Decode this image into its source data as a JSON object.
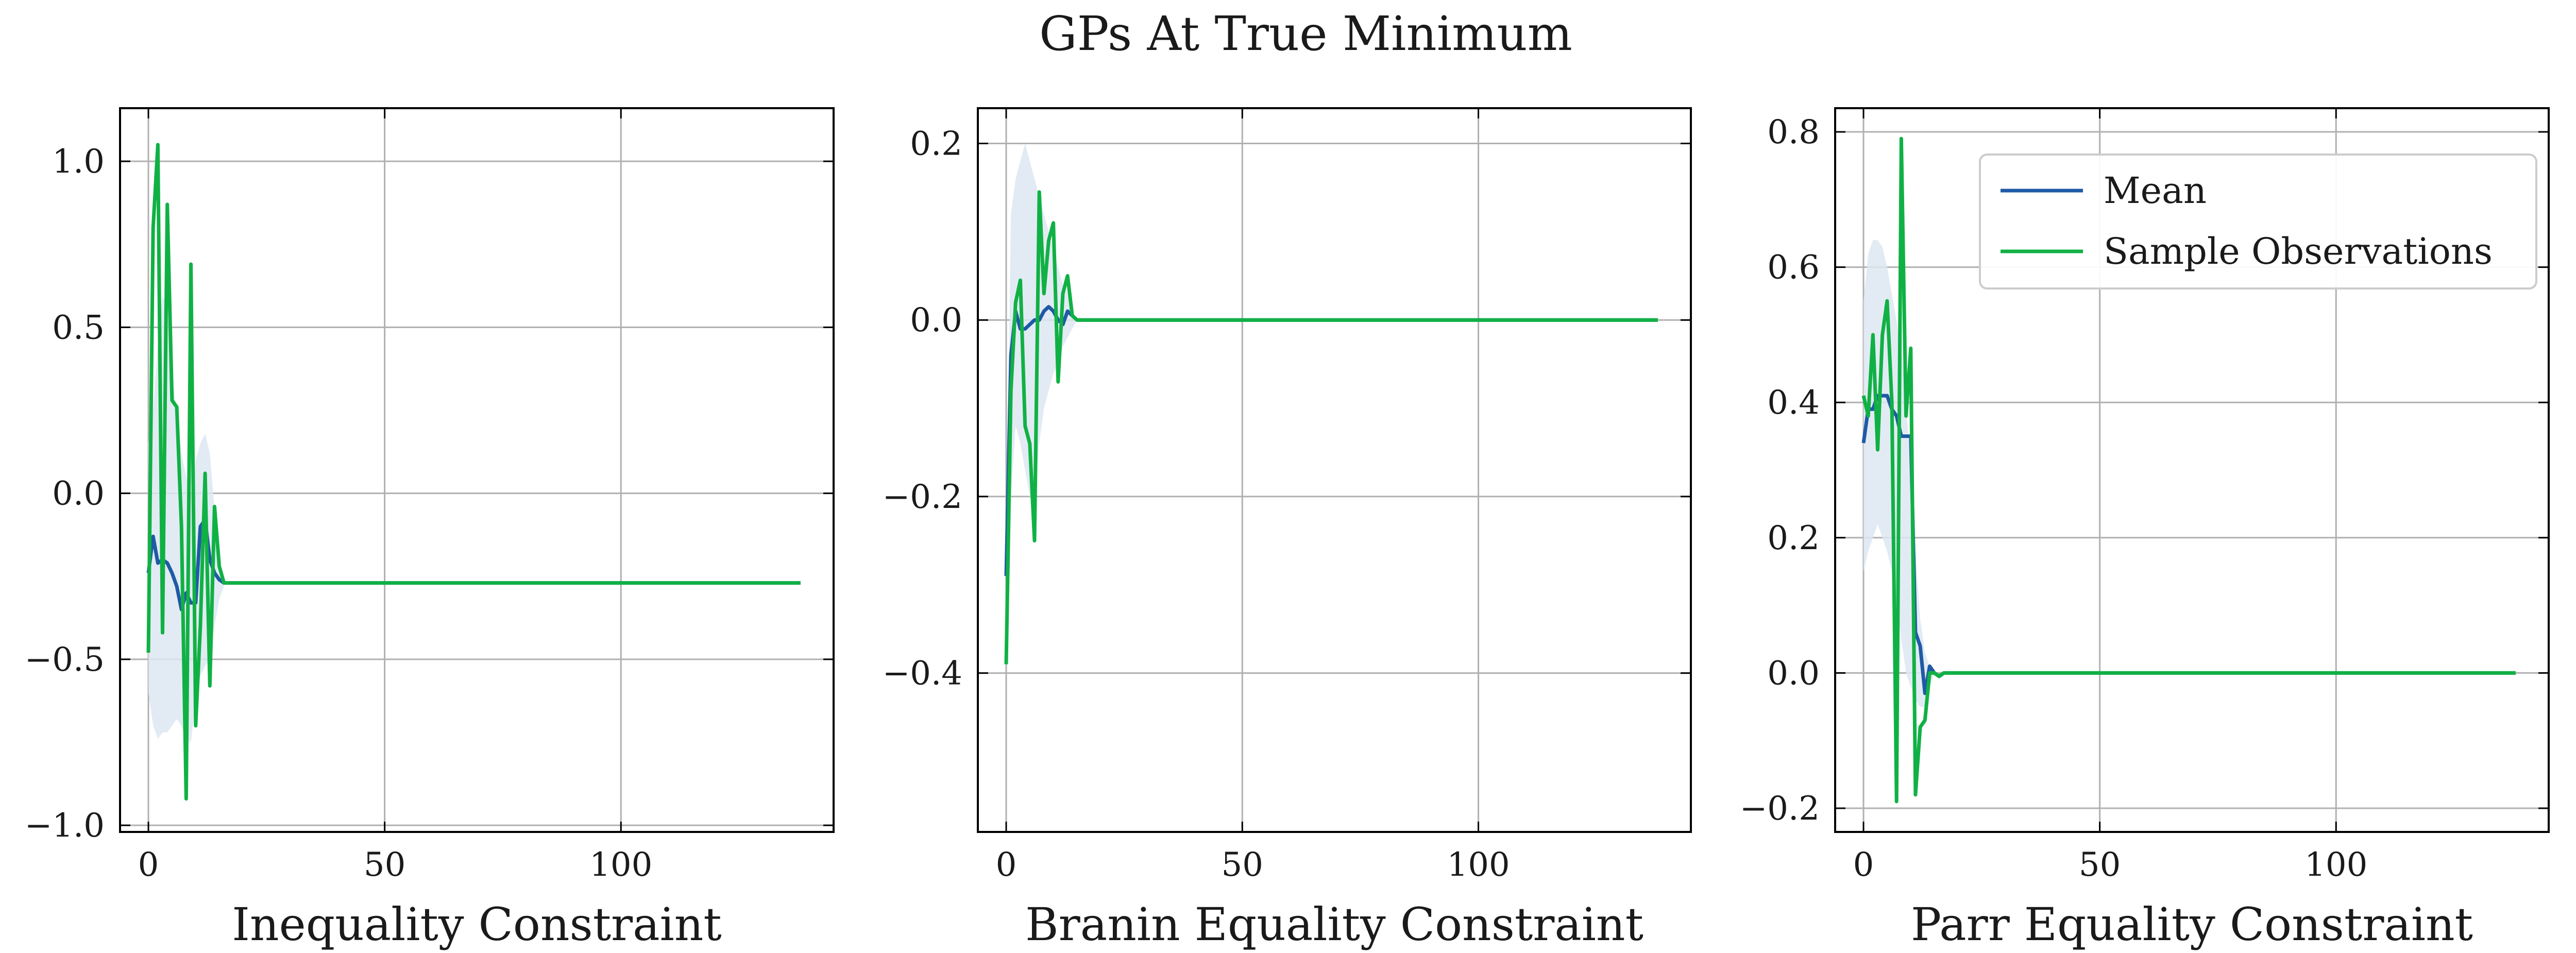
{
  "title": "GPs At True Minimum",
  "colors": {
    "mean": "#1f5aa6",
    "samples": "#10b144",
    "band": "#dde8f1",
    "grid": "#b0b0b0",
    "axis": "#000000"
  },
  "legend": {
    "location": "upper right",
    "subplot": 2,
    "entries": [
      "Mean",
      "Sample Observations"
    ]
  },
  "chart_data": [
    {
      "type": "line",
      "xlabel": "Inequality Constraint",
      "xlim": [
        -6,
        145
      ],
      "ylim": [
        -1.02,
        1.16
      ],
      "xticks": [
        0,
        50,
        100
      ],
      "xtick_labels": [
        "0",
        "50",
        "100"
      ],
      "yticks": [
        -1.0,
        -0.5,
        0.0,
        0.5,
        1.0
      ],
      "ytick_labels": [
        "−1.0",
        "−0.5",
        "0.0",
        "0.5",
        "1.0"
      ],
      "grid": true,
      "series": [
        {
          "name": "Mean",
          "x": [
            0,
            1,
            2,
            3,
            4,
            5,
            6,
            7,
            8,
            9,
            10,
            11,
            12,
            13,
            14,
            15,
            16,
            17,
            138
          ],
          "y": [
            -0.24,
            -0.13,
            -0.21,
            -0.2,
            -0.21,
            -0.24,
            -0.28,
            -0.35,
            -0.3,
            -0.33,
            -0.33,
            -0.1,
            -0.08,
            -0.2,
            -0.24,
            -0.26,
            -0.27,
            -0.27,
            -0.27
          ]
        },
        {
          "name": "Sample Observations",
          "x": [
            0,
            1,
            2,
            3,
            4,
            5,
            6,
            7,
            8,
            9,
            10,
            11,
            12,
            13,
            14,
            15,
            16,
            17,
            138
          ],
          "y": [
            -0.48,
            0.8,
            1.05,
            -0.42,
            0.87,
            0.28,
            0.26,
            -0.1,
            -0.92,
            0.69,
            -0.7,
            -0.4,
            0.06,
            -0.58,
            -0.04,
            -0.22,
            -0.27,
            -0.27,
            -0.27
          ]
        }
      ],
      "band": {
        "x": [
          0,
          1,
          2,
          3,
          4,
          5,
          6,
          7,
          8,
          9,
          10,
          11,
          12,
          13,
          14,
          15,
          16
        ],
        "lower": [
          -0.6,
          -0.7,
          -0.74,
          -0.72,
          -0.72,
          -0.7,
          -0.68,
          -0.7,
          -0.74,
          -0.75,
          -0.62,
          -0.55,
          -0.52,
          -0.5,
          -0.4,
          -0.32,
          -0.28
        ],
        "upper": [
          0.15,
          0.25,
          0.45,
          0.6,
          0.55,
          0.35,
          0.25,
          0.12,
          0.05,
          0.0,
          0.1,
          0.15,
          0.18,
          0.12,
          -0.05,
          -0.2,
          -0.26
        ]
      }
    },
    {
      "type": "line",
      "xlabel": "Branin Equality Constraint",
      "xlim": [
        -6,
        145
      ],
      "ylim": [
        -0.58,
        0.24
      ],
      "xticks": [
        0,
        50,
        100
      ],
      "xtick_labels": [
        "0",
        "50",
        "100"
      ],
      "yticks": [
        -0.4,
        -0.2,
        0.0,
        0.2
      ],
      "ytick_labels": [
        "−0.4",
        "−0.2",
        "0.0",
        "0.2"
      ],
      "grid": true,
      "series": [
        {
          "name": "Mean",
          "x": [
            0,
            1,
            2,
            3,
            4,
            5,
            6,
            7,
            8,
            9,
            10,
            11,
            12,
            13,
            14,
            15,
            138
          ],
          "y": [
            -0.29,
            -0.04,
            0.01,
            -0.01,
            -0.01,
            -0.005,
            0.0,
            0.0,
            0.01,
            0.015,
            0.01,
            0.0,
            -0.005,
            0.01,
            0.005,
            0.0,
            0.0
          ]
        },
        {
          "name": "Sample Observations",
          "x": [
            0,
            1,
            2,
            3,
            4,
            5,
            6,
            7,
            8,
            9,
            10,
            11,
            12,
            13,
            14,
            15,
            138
          ],
          "y": [
            -0.39,
            -0.08,
            0.02,
            0.045,
            -0.12,
            -0.14,
            -0.25,
            0.145,
            0.03,
            0.09,
            0.11,
            -0.07,
            0.03,
            0.05,
            0.005,
            0.0,
            0.0
          ]
        }
      ],
      "band": {
        "x": [
          0,
          1,
          2,
          3,
          4,
          5,
          6,
          7,
          8,
          9,
          10,
          11,
          12,
          13,
          14,
          15
        ],
        "lower": [
          -0.3,
          -0.2,
          -0.12,
          -0.14,
          -0.17,
          -0.2,
          -0.2,
          -0.14,
          -0.1,
          -0.08,
          -0.06,
          -0.05,
          -0.03,
          -0.02,
          -0.01,
          0.0
        ],
        "upper": [
          -0.25,
          0.12,
          0.16,
          0.18,
          0.2,
          0.18,
          0.16,
          0.14,
          0.12,
          0.1,
          0.08,
          0.06,
          0.04,
          0.03,
          0.01,
          0.0
        ]
      }
    },
    {
      "type": "line",
      "xlabel": "Parr Equality Constraint",
      "xlim": [
        -6,
        145
      ],
      "ylim": [
        -0.235,
        0.835
      ],
      "xticks": [
        0,
        50,
        100
      ],
      "xtick_labels": [
        "0",
        "50",
        "100"
      ],
      "yticks": [
        -0.2,
        0.0,
        0.2,
        0.4,
        0.6,
        0.8
      ],
      "ytick_labels": [
        "−0.2",
        "0.0",
        "0.2",
        "0.4",
        "0.6",
        "0.8"
      ],
      "grid": true,
      "series": [
        {
          "name": "Mean",
          "x": [
            0,
            1,
            2,
            3,
            4,
            5,
            6,
            7,
            8,
            9,
            10,
            11,
            12,
            13,
            14,
            15,
            16,
            17,
            18,
            19,
            20,
            138
          ],
          "y": [
            0.34,
            0.39,
            0.39,
            0.41,
            0.41,
            0.41,
            0.39,
            0.38,
            0.35,
            0.35,
            0.35,
            0.06,
            0.04,
            -0.03,
            0.01,
            0.0,
            -0.005,
            0.0,
            0.0,
            0.0,
            0.0,
            0.0
          ]
        },
        {
          "name": "Sample Observations",
          "x": [
            0,
            1,
            2,
            3,
            4,
            5,
            6,
            7,
            8,
            9,
            10,
            11,
            12,
            13,
            14,
            15,
            16,
            17,
            18,
            19,
            20,
            138
          ],
          "y": [
            0.41,
            0.38,
            0.5,
            0.33,
            0.5,
            0.55,
            0.4,
            -0.19,
            0.79,
            0.38,
            0.48,
            -0.18,
            -0.08,
            -0.07,
            0.0,
            0.0,
            -0.005,
            0.0,
            0.0,
            0.0,
            0.0,
            0.0
          ]
        }
      ],
      "band": {
        "x": [
          0,
          1,
          2,
          3,
          4,
          5,
          6,
          7,
          8,
          9,
          10,
          11,
          12,
          13,
          14,
          15
        ],
        "lower": [
          0.15,
          0.18,
          0.2,
          0.22,
          0.2,
          0.18,
          0.15,
          0.1,
          0.05,
          0.0,
          -0.02,
          -0.04,
          -0.05,
          -0.05,
          -0.02,
          0.0
        ],
        "upper": [
          0.55,
          0.62,
          0.64,
          0.64,
          0.63,
          0.6,
          0.56,
          0.52,
          0.48,
          0.4,
          0.3,
          0.18,
          0.08,
          0.03,
          0.01,
          0.0
        ]
      }
    }
  ]
}
